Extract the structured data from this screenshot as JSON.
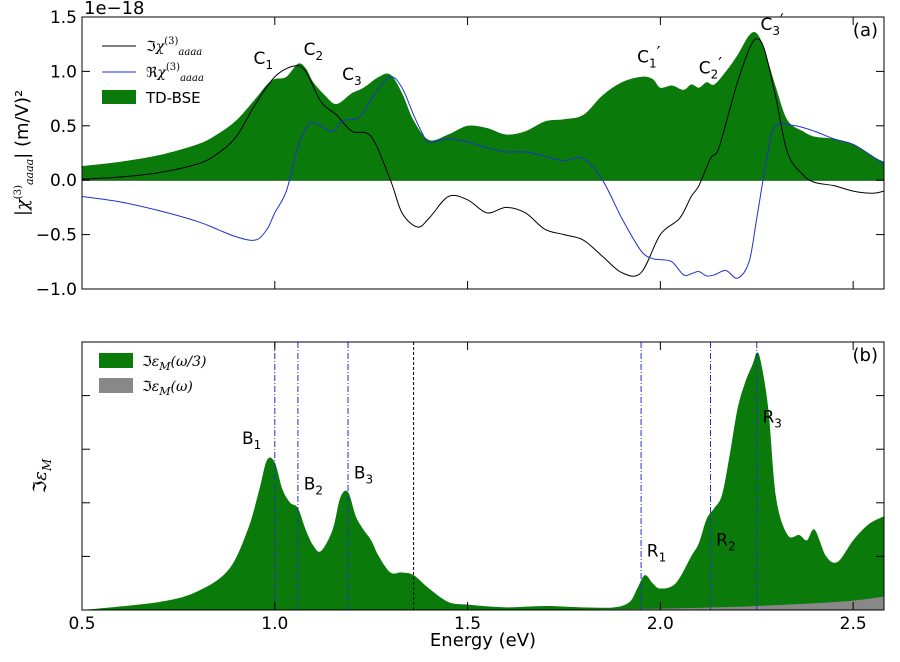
{
  "chart_data": [
    {
      "panel": "(a)",
      "type": "area+line",
      "xlim": [
        0.5,
        2.58
      ],
      "ylim": [
        -1.0,
        1.5
      ],
      "offset_text": "1e−18",
      "ylabel": "|χ(3)aaaa| (m/V)²",
      "yticks": [
        {
          "v": 1.5,
          "label": "1.5"
        },
        {
          "v": 1.0,
          "label": "1.0"
        },
        {
          "v": 0.5,
          "label": "0.5"
        },
        {
          "v": 0.0,
          "label": "0.0"
        },
        {
          "v": -0.5,
          "label": "−0.5"
        },
        {
          "v": -1.0,
          "label": "−1.0"
        }
      ],
      "xticks": [
        0.5,
        1.0,
        1.5,
        2.0,
        2.5
      ],
      "legend": [
        {
          "label": "ℑχ(3)aaaa",
          "color": "#000000",
          "kind": "line"
        },
        {
          "label": "ℜχ(3)aaaa",
          "color": "#1f32c8",
          "kind": "line"
        },
        {
          "label": "TD-BSE",
          "color": "#0a7a0a",
          "kind": "patch"
        }
      ],
      "series": [
        {
          "name": "TD-BSE",
          "kind": "fill",
          "color": "#0a7a0a",
          "x": [
            0.5,
            0.6,
            0.7,
            0.8,
            0.85,
            0.9,
            0.95,
            0.98,
            1.0,
            1.03,
            1.06,
            1.08,
            1.1,
            1.13,
            1.16,
            1.2,
            1.23,
            1.27,
            1.3,
            1.33,
            1.36,
            1.4,
            1.45,
            1.5,
            1.55,
            1.6,
            1.65,
            1.7,
            1.75,
            1.8,
            1.85,
            1.9,
            1.95,
            1.98,
            2.0,
            2.03,
            2.06,
            2.08,
            2.1,
            2.12,
            2.14,
            2.17,
            2.2,
            2.23,
            2.25,
            2.27,
            2.3,
            2.33,
            2.37,
            2.4,
            2.45,
            2.5,
            2.55,
            2.58
          ],
          "y": [
            0.13,
            0.17,
            0.23,
            0.33,
            0.42,
            0.55,
            0.75,
            0.88,
            0.93,
            0.95,
            1.07,
            1.03,
            0.9,
            0.78,
            0.7,
            0.8,
            0.85,
            0.95,
            0.97,
            0.8,
            0.55,
            0.37,
            0.42,
            0.5,
            0.48,
            0.42,
            0.45,
            0.54,
            0.56,
            0.6,
            0.78,
            0.9,
            0.95,
            0.93,
            0.85,
            0.87,
            0.83,
            0.88,
            0.85,
            0.9,
            0.88,
            1.0,
            1.15,
            1.33,
            1.35,
            1.2,
            0.85,
            0.55,
            0.45,
            0.4,
            0.38,
            0.33,
            0.22,
            0.17
          ]
        },
        {
          "name": "ℑχ(3)aaaa",
          "kind": "line",
          "color": "#000000",
          "x": [
            0.5,
            0.6,
            0.7,
            0.8,
            0.85,
            0.9,
            0.95,
            1.0,
            1.05,
            1.08,
            1.12,
            1.16,
            1.2,
            1.25,
            1.3,
            1.33,
            1.37,
            1.4,
            1.45,
            1.5,
            1.55,
            1.6,
            1.65,
            1.7,
            1.75,
            1.8,
            1.85,
            1.9,
            1.95,
            2.0,
            2.05,
            2.08,
            2.1,
            2.13,
            2.15,
            2.18,
            2.2,
            2.23,
            2.25,
            2.27,
            2.3,
            2.33,
            2.37,
            2.4,
            2.45,
            2.5,
            2.55,
            2.58
          ],
          "y": [
            0.01,
            0.03,
            0.07,
            0.15,
            0.24,
            0.4,
            0.7,
            0.95,
            1.05,
            1.0,
            0.72,
            0.6,
            0.45,
            0.4,
            0.0,
            -0.3,
            -0.43,
            -0.35,
            -0.15,
            -0.18,
            -0.3,
            -0.25,
            -0.3,
            -0.45,
            -0.5,
            -0.55,
            -0.7,
            -0.85,
            -0.85,
            -0.5,
            -0.35,
            -0.15,
            -0.05,
            0.2,
            0.28,
            0.65,
            0.9,
            1.2,
            1.3,
            1.2,
            0.75,
            0.25,
            0.05,
            -0.02,
            -0.05,
            -0.1,
            -0.12,
            -0.1
          ]
        },
        {
          "name": "ℜχ(3)aaaa",
          "kind": "line",
          "color": "#1f32c8",
          "x": [
            0.5,
            0.6,
            0.7,
            0.8,
            0.85,
            0.9,
            0.95,
            0.98,
            1.0,
            1.03,
            1.06,
            1.09,
            1.12,
            1.15,
            1.18,
            1.22,
            1.26,
            1.3,
            1.33,
            1.36,
            1.38,
            1.4,
            1.45,
            1.5,
            1.55,
            1.6,
            1.65,
            1.7,
            1.75,
            1.8,
            1.85,
            1.9,
            1.95,
            1.98,
            2.0,
            2.03,
            2.06,
            2.08,
            2.1,
            2.12,
            2.14,
            2.17,
            2.2,
            2.23,
            2.25,
            2.28,
            2.3,
            2.35,
            2.4,
            2.45,
            2.5,
            2.55,
            2.58
          ],
          "y": [
            -0.15,
            -0.2,
            -0.28,
            -0.38,
            -0.45,
            -0.52,
            -0.55,
            -0.45,
            -0.3,
            -0.1,
            0.3,
            0.52,
            0.5,
            0.45,
            0.55,
            0.58,
            0.8,
            0.95,
            0.85,
            0.6,
            0.45,
            0.35,
            0.38,
            0.35,
            0.3,
            0.26,
            0.26,
            0.22,
            0.18,
            0.2,
            0.0,
            -0.35,
            -0.65,
            -0.72,
            -0.73,
            -0.75,
            -0.87,
            -0.86,
            -0.84,
            -0.88,
            -0.87,
            -0.83,
            -0.9,
            -0.75,
            -0.35,
            0.28,
            0.5,
            0.5,
            0.45,
            0.38,
            0.33,
            0.22,
            0.15
          ]
        }
      ],
      "annotations": [
        {
          "x": 0.97,
          "y": 1.07,
          "base": "C",
          "sub": "1",
          "prime": ""
        },
        {
          "x": 1.1,
          "y": 1.15,
          "base": "C",
          "sub": "2",
          "prime": ""
        },
        {
          "x": 1.2,
          "y": 0.92,
          "base": "C",
          "sub": "3",
          "prime": ""
        },
        {
          "x": 1.97,
          "y": 1.08,
          "base": "C",
          "sub": "1",
          "prime": "′"
        },
        {
          "x": 2.13,
          "y": 0.98,
          "base": "C",
          "sub": "2",
          "prime": "′"
        },
        {
          "x": 2.29,
          "y": 1.38,
          "base": "C",
          "sub": "3",
          "prime": "′"
        }
      ]
    },
    {
      "panel": "(b)",
      "type": "area",
      "xlim": [
        0.5,
        2.58
      ],
      "ylim": [
        0,
        1.0
      ],
      "xlabel": "Energy (eV)",
      "ylabel": "ℑεM",
      "xticks": [
        {
          "v": 0.5,
          "label": "0.5"
        },
        {
          "v": 1.0,
          "label": "1.0"
        },
        {
          "v": 1.5,
          "label": "1.5"
        },
        {
          "v": 2.0,
          "label": "2.0"
        },
        {
          "v": 2.5,
          "label": "2.5"
        }
      ],
      "legend": [
        {
          "label": "ℑεM(ω/3)",
          "color": "#0a7a0a"
        },
        {
          "label": "ℑεM(ω)",
          "color": "#888888"
        }
      ],
      "series": [
        {
          "name": "ℑεM(ω/3)",
          "kind": "fill",
          "color": "#0a7a0a",
          "x": [
            0.5,
            0.7,
            0.8,
            0.88,
            0.93,
            0.96,
            0.98,
            1.0,
            1.02,
            1.04,
            1.06,
            1.08,
            1.1,
            1.12,
            1.15,
            1.17,
            1.19,
            1.21,
            1.23,
            1.25,
            1.27,
            1.3,
            1.33,
            1.36,
            1.4,
            1.45,
            1.5,
            1.6,
            1.7,
            1.8,
            1.88,
            1.92,
            1.94,
            1.96,
            1.98,
            2.0,
            2.04,
            2.08,
            2.1,
            2.12,
            2.14,
            2.16,
            2.18,
            2.2,
            2.22,
            2.24,
            2.25,
            2.26,
            2.28,
            2.3,
            2.33,
            2.36,
            2.38,
            2.4,
            2.43,
            2.46,
            2.5,
            2.54,
            2.58
          ],
          "y": [
            0.0,
            0.03,
            0.07,
            0.15,
            0.3,
            0.45,
            0.56,
            0.55,
            0.45,
            0.4,
            0.38,
            0.3,
            0.24,
            0.22,
            0.3,
            0.42,
            0.44,
            0.35,
            0.3,
            0.26,
            0.2,
            0.14,
            0.14,
            0.13,
            0.08,
            0.03,
            0.02,
            0.01,
            0.015,
            0.01,
            0.01,
            0.03,
            0.08,
            0.13,
            0.1,
            0.08,
            0.1,
            0.2,
            0.25,
            0.34,
            0.38,
            0.43,
            0.58,
            0.75,
            0.85,
            0.92,
            0.96,
            0.93,
            0.75,
            0.42,
            0.28,
            0.28,
            0.26,
            0.3,
            0.2,
            0.18,
            0.26,
            0.32,
            0.35
          ]
        },
        {
          "name": "ℑεM(ω)",
          "kind": "fill",
          "color": "#888888",
          "x": [
            0.5,
            1.0,
            1.5,
            1.8,
            2.0,
            2.2,
            2.3,
            2.4,
            2.5,
            2.58
          ],
          "y": [
            0.0,
            0.0,
            0.0,
            0.002,
            0.005,
            0.012,
            0.018,
            0.025,
            0.035,
            0.05
          ]
        }
      ],
      "vlines": [
        {
          "x": 1.0,
          "color": "#1f32c8"
        },
        {
          "x": 1.06,
          "color": "#1f32c8"
        },
        {
          "x": 1.19,
          "color": "#1f32c8"
        },
        {
          "x": 1.36,
          "color": "#000000"
        },
        {
          "x": 1.95,
          "color": "#1f32c8"
        },
        {
          "x": 2.13,
          "color": "#1f32c8"
        },
        {
          "x": 2.25,
          "color": "#1f32c8"
        }
      ],
      "annotations": [
        {
          "x": 0.94,
          "y": 0.62,
          "base": "B",
          "sub": "1"
        },
        {
          "x": 1.1,
          "y": 0.45,
          "base": "B",
          "sub": "2"
        },
        {
          "x": 1.23,
          "y": 0.49,
          "base": "B",
          "sub": "3"
        },
        {
          "x": 1.99,
          "y": 0.2,
          "base": "R",
          "sub": "1"
        },
        {
          "x": 2.17,
          "y": 0.24,
          "base": "R",
          "sub": "2"
        },
        {
          "x": 2.29,
          "y": 0.7,
          "base": "R",
          "sub": "3"
        }
      ]
    }
  ]
}
